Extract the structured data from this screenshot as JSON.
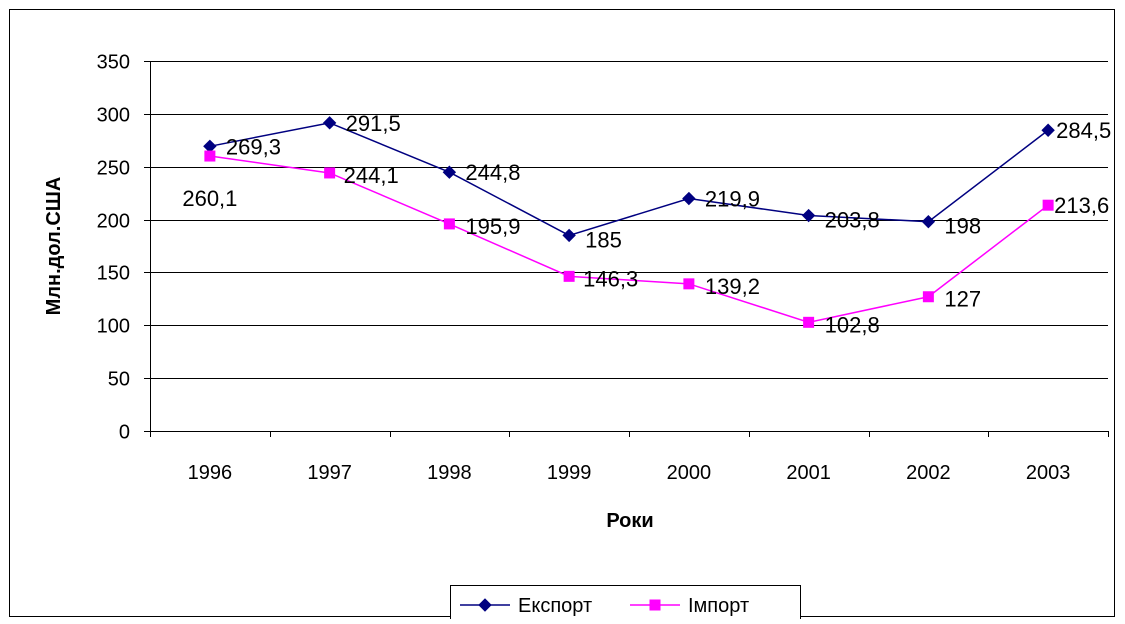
{
  "chart_data": {
    "type": "line",
    "title": "",
    "xlabel": "Роки",
    "ylabel": "Млн.дол.США",
    "categories": [
      "1996",
      "1997",
      "1998",
      "1999",
      "2000",
      "2001",
      "2002",
      "2003"
    ],
    "ylim": [
      0,
      350
    ],
    "yticks": [
      0,
      50,
      100,
      150,
      200,
      250,
      300,
      350
    ],
    "grid": true,
    "legend_position": "bottom",
    "series": [
      {
        "name": "Експорт",
        "color": "#000080",
        "marker": "diamond",
        "values": [
          269.3,
          291.5,
          244.8,
          185,
          219.9,
          203.8,
          198,
          284.5
        ],
        "labels": [
          "269,3",
          "291,5",
          "244,8",
          "185",
          "219,9",
          "203,8",
          "198",
          "284,5"
        ]
      },
      {
        "name": "Імпорт",
        "color": "#ff00ff",
        "marker": "square",
        "values": [
          260.1,
          244.1,
          195.9,
          146.3,
          139.2,
          102.8,
          127,
          213.6
        ],
        "labels": [
          "260,1",
          "244,1",
          "195,9",
          "146,3",
          "139,2",
          "102,8",
          "127",
          "213,6"
        ]
      }
    ]
  }
}
